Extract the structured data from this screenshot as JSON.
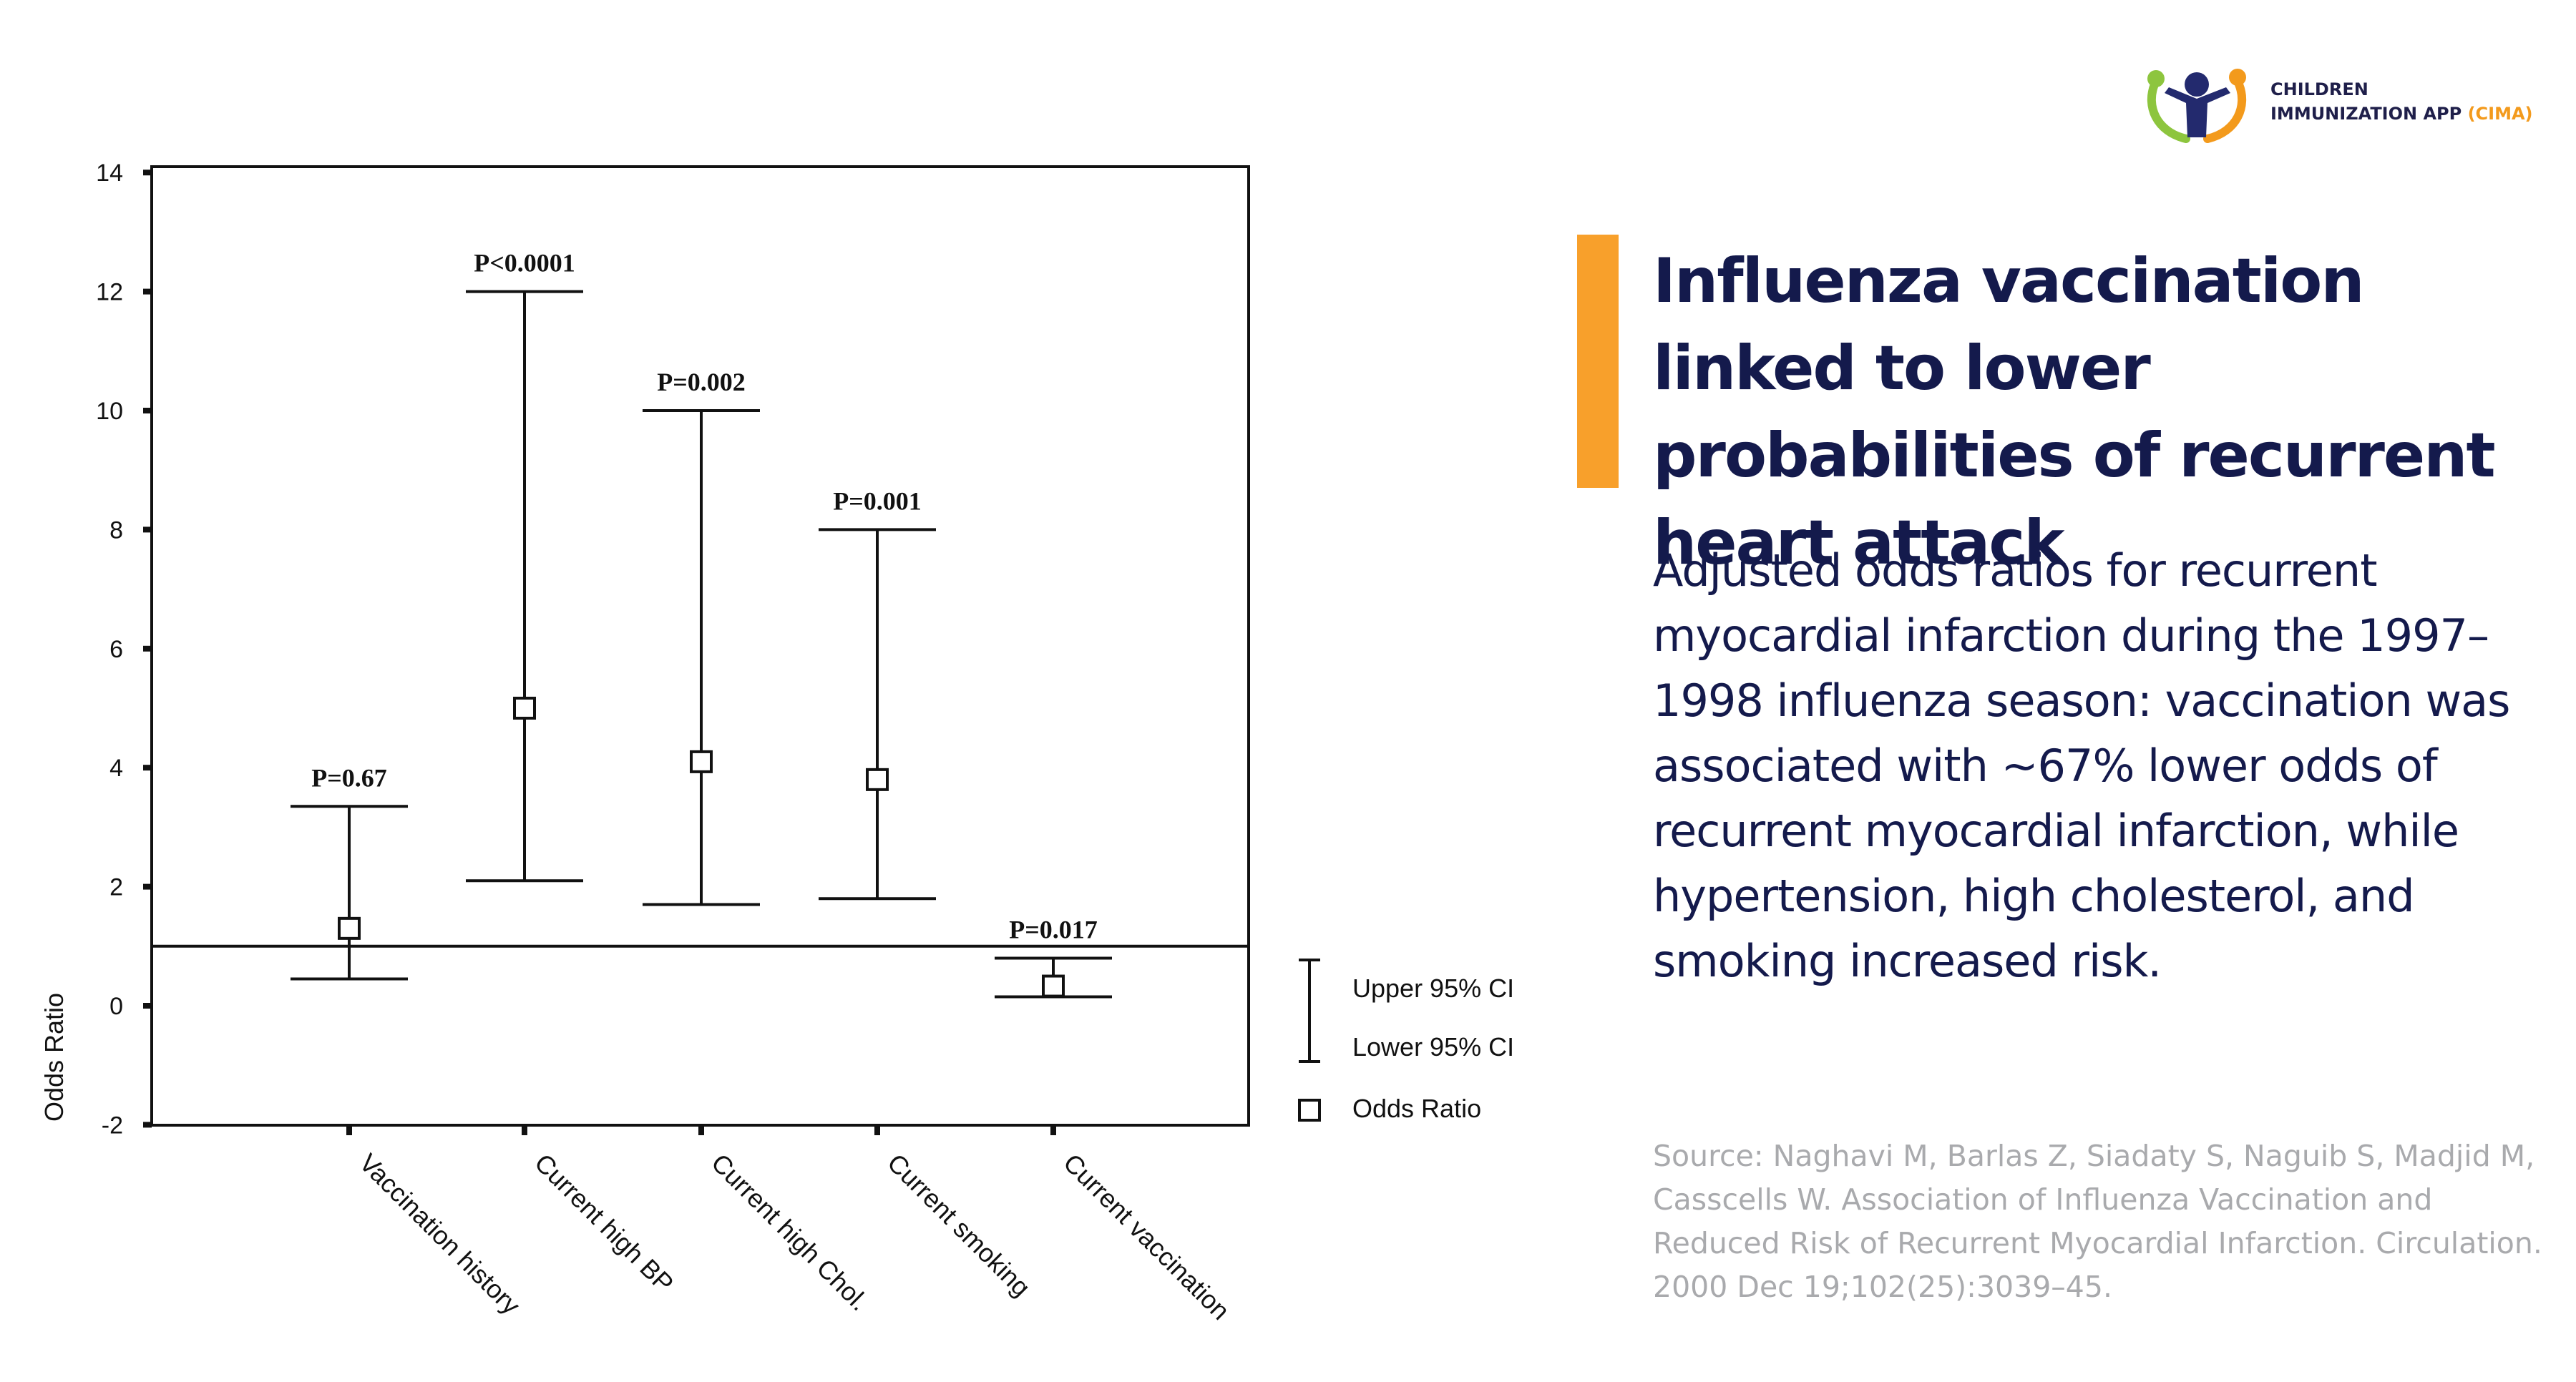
{
  "branding": {
    "name_line1": "CHILDREN",
    "name_line2": "IMMUNIZATION APP",
    "name_accent": "(CIMA)",
    "accent_color": "#f39a1c",
    "logo_icon": "children-immunization-logo-icon"
  },
  "headline": "Influenza vaccination linked to lower probabilities of recurrent heart attack",
  "description": "Adjusted odds ratios for recurrent myocardial infarction during the 1997–1998 influenza season: vaccination was associated with ~67% lower odds of recurrent myocardial infarction, while hypertension, high cholesterol, and smoking increased risk.",
  "source": "Source: Naghavi M, Barlas Z, Siadaty S, Naguib S, Madjid M, Casscells W. Association of Influenza Vaccination and Reduced Risk of Recurrent Myocardial Infarction. Circulation. 2000 Dec 19;102(25):3039–45.",
  "colors": {
    "headline": "#141a4c",
    "accent_bar": "#f8a02b",
    "source": "#a9aaad"
  },
  "chart_data": {
    "type": "error-bar",
    "ylabel": "Odds Ratio",
    "ylim": [
      -2,
      14
    ],
    "yticks": [
      "14",
      "12",
      "10",
      "8",
      "6",
      "4",
      "2",
      "0",
      "-2"
    ],
    "reference_line": 1,
    "categories": [
      "Vaccination history",
      "Current high BP",
      "Current high Chol.",
      "Current smoking",
      "Current vaccination"
    ],
    "odds_ratio": [
      1.3,
      5.0,
      4.1,
      3.8,
      0.33
    ],
    "lower_ci": [
      0.45,
      2.1,
      1.7,
      1.8,
      0.15
    ],
    "upper_ci": [
      3.35,
      12.0,
      10.0,
      8.0,
      0.8
    ],
    "p_values": [
      "P=0.67",
      "P<0.0001",
      "P=0.002",
      "P=0.001",
      "P=0.017"
    ],
    "legend": {
      "upper": "Upper 95% CI",
      "lower": "Lower 95% CI",
      "odds": "Odds Ratio",
      "position": "right"
    }
  }
}
